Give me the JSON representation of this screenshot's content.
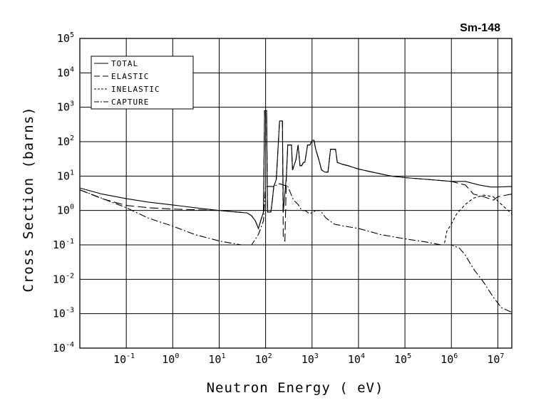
{
  "chart_data": {
    "type": "line",
    "title": "Sm-148",
    "xlabel": "Neutron Energy ( eV)",
    "ylabel": "Cross Section (barns)",
    "x_scale": "log",
    "y_scale": "log",
    "xlim": [
      0.01,
      20000000
    ],
    "ylim": [
      0.0001,
      100000
    ],
    "grid": true,
    "legend_position": "top-left",
    "x_ticks": [
      {
        "base": "10",
        "exp": "-1",
        "value": 0.1
      },
      {
        "base": "10",
        "exp": "0",
        "value": 1
      },
      {
        "base": "10",
        "exp": "1",
        "value": 10
      },
      {
        "base": "10",
        "exp": "2",
        "value": 100
      },
      {
        "base": "10",
        "exp": "3",
        "value": 1000
      },
      {
        "base": "10",
        "exp": "4",
        "value": 10000
      },
      {
        "base": "10",
        "exp": "5",
        "value": 100000
      },
      {
        "base": "10",
        "exp": "6",
        "value": 1000000
      },
      {
        "base": "10",
        "exp": "7",
        "value": 10000000
      }
    ],
    "y_ticks": [
      {
        "base": "10",
        "exp": "-4",
        "value": 0.0001
      },
      {
        "base": "10",
        "exp": "-3",
        "value": 0.001
      },
      {
        "base": "10",
        "exp": "-2",
        "value": 0.01
      },
      {
        "base": "10",
        "exp": "-1",
        "value": 0.1
      },
      {
        "base": "10",
        "exp": "0",
        "value": 1
      },
      {
        "base": "10",
        "exp": "1",
        "value": 10
      },
      {
        "base": "10",
        "exp": "2",
        "value": 100
      },
      {
        "base": "10",
        "exp": "3",
        "value": 1000
      },
      {
        "base": "10",
        "exp": "4",
        "value": 10000
      },
      {
        "base": "10",
        "exp": "5",
        "value": 100000
      }
    ],
    "series": [
      {
        "name": "TOTAL",
        "style": "solid",
        "points": [
          [
            0.01,
            4.5
          ],
          [
            0.03,
            3.0
          ],
          [
            0.1,
            2.2
          ],
          [
            0.3,
            1.75
          ],
          [
            1,
            1.45
          ],
          [
            3,
            1.2
          ],
          [
            10,
            1.0
          ],
          [
            20,
            0.92
          ],
          [
            40,
            0.85
          ],
          [
            50,
            0.7
          ],
          [
            60,
            0.5
          ],
          [
            70,
            0.3
          ],
          [
            80,
            0.55
          ],
          [
            90,
            0.9
          ],
          [
            95,
            800
          ],
          [
            105,
            800
          ],
          [
            110,
            0.9
          ],
          [
            130,
            0.9
          ],
          [
            140,
            2.0
          ],
          [
            150,
            5.0
          ],
          [
            170,
            8.0
          ],
          [
            200,
            400
          ],
          [
            230,
            400
          ],
          [
            240,
            0.9
          ],
          [
            280,
            10
          ],
          [
            300,
            80
          ],
          [
            360,
            80
          ],
          [
            380,
            15
          ],
          [
            450,
            30
          ],
          [
            500,
            80
          ],
          [
            550,
            20
          ],
          [
            600,
            20
          ],
          [
            650,
            25
          ],
          [
            700,
            25
          ],
          [
            800,
            80
          ],
          [
            900,
            80
          ],
          [
            1000,
            110
          ],
          [
            1100,
            110
          ],
          [
            1200,
            60
          ],
          [
            1400,
            30
          ],
          [
            1600,
            15
          ],
          [
            1900,
            13
          ],
          [
            2200,
            13
          ],
          [
            2500,
            60
          ],
          [
            3200,
            60
          ],
          [
            3500,
            25
          ],
          [
            4500,
            22
          ],
          [
            6000,
            20
          ],
          [
            10000,
            16
          ],
          [
            20000,
            13
          ],
          [
            50000,
            10
          ],
          [
            100000,
            9
          ],
          [
            300000,
            8
          ],
          [
            1000000,
            7
          ],
          [
            2000000,
            7
          ],
          [
            4000000,
            5.5
          ],
          [
            7000000,
            4.8
          ],
          [
            10000000,
            4.8
          ],
          [
            20000000,
            5.0
          ]
        ]
      },
      {
        "name": "ELASTIC",
        "style": "long-dash",
        "points": [
          [
            0.01,
            4.0
          ],
          [
            0.03,
            2.2
          ],
          [
            0.1,
            1.4
          ],
          [
            0.3,
            1.2
          ],
          [
            1,
            1.1
          ],
          [
            3,
            1.05
          ],
          [
            10,
            1.0
          ],
          [
            20,
            0.92
          ],
          [
            40,
            0.85
          ],
          [
            50,
            0.7
          ],
          [
            60,
            0.5
          ],
          [
            70,
            0.3
          ],
          [
            80,
            0.55
          ],
          [
            90,
            0.9
          ],
          [
            95,
            800
          ],
          [
            105,
            800
          ],
          [
            110,
            0.9
          ],
          [
            130,
            0.9
          ],
          [
            140,
            2.0
          ],
          [
            150,
            5.0
          ],
          [
            170,
            8.0
          ],
          [
            200,
            400
          ],
          [
            230,
            400
          ],
          [
            240,
            0.15
          ],
          [
            260,
            0.13
          ],
          [
            280,
            10
          ],
          [
            300,
            80
          ],
          [
            360,
            80
          ],
          [
            380,
            15
          ],
          [
            450,
            30
          ],
          [
            500,
            80
          ],
          [
            550,
            20
          ],
          [
            600,
            20
          ],
          [
            650,
            25
          ],
          [
            700,
            25
          ],
          [
            800,
            80
          ],
          [
            900,
            80
          ],
          [
            1000,
            110
          ],
          [
            1100,
            110
          ],
          [
            1200,
            60
          ],
          [
            1400,
            30
          ],
          [
            1600,
            15
          ],
          [
            1900,
            13
          ],
          [
            2200,
            13
          ],
          [
            2500,
            60
          ],
          [
            3200,
            60
          ],
          [
            3500,
            25
          ],
          [
            4500,
            22
          ],
          [
            6000,
            20
          ],
          [
            10000,
            16
          ],
          [
            20000,
            13
          ],
          [
            50000,
            10
          ],
          [
            100000,
            9
          ],
          [
            300000,
            8
          ],
          [
            1000000,
            7
          ],
          [
            2000000,
            5.5
          ],
          [
            3000000,
            3.0
          ],
          [
            5000000,
            2.5
          ],
          [
            8000000,
            2.0
          ],
          [
            10000000,
            2.5
          ],
          [
            20000000,
            3.0
          ]
        ]
      },
      {
        "name": "INELASTIC",
        "style": "short-dash",
        "points": [
          [
            600000,
            0.1
          ],
          [
            700000,
            0.1
          ],
          [
            800000,
            0.25
          ],
          [
            1000000,
            0.4
          ],
          [
            1300000,
            0.8
          ],
          [
            2000000,
            1.5
          ],
          [
            3000000,
            2.3
          ],
          [
            5000000,
            2.8
          ],
          [
            8000000,
            2.5
          ],
          [
            12000000,
            1.5
          ],
          [
            20000000,
            0.8
          ]
        ]
      },
      {
        "name": "CAPTURE",
        "style": "dash-dot",
        "points": [
          [
            0.01,
            4.0
          ],
          [
            0.1,
            1.2
          ],
          [
            0.3,
            0.6
          ],
          [
            1,
            0.35
          ],
          [
            3,
            0.2
          ],
          [
            10,
            0.13
          ],
          [
            30,
            0.1
          ],
          [
            50,
            0.1
          ],
          [
            70,
            0.2
          ],
          [
            90,
            0.5
          ],
          [
            100,
            5.0
          ],
          [
            150,
            5.0
          ],
          [
            200,
            6.0
          ],
          [
            300,
            5.0
          ],
          [
            400,
            2.0
          ],
          [
            500,
            1.5
          ],
          [
            600,
            1.0
          ],
          [
            700,
            1.0
          ],
          [
            900,
            0.8
          ],
          [
            1200,
            1.0
          ],
          [
            1500,
            1.0
          ],
          [
            2000,
            0.6
          ],
          [
            3000,
            0.4
          ],
          [
            5000,
            0.35
          ],
          [
            10000,
            0.3
          ],
          [
            30000,
            0.2
          ],
          [
            100000,
            0.15
          ],
          [
            300000,
            0.12
          ],
          [
            600000,
            0.1
          ],
          [
            1000000,
            0.1
          ],
          [
            1500000,
            0.08
          ],
          [
            2000000,
            0.05
          ],
          [
            3000000,
            0.02
          ],
          [
            5000000,
            0.008
          ],
          [
            8000000,
            0.003
          ],
          [
            12000000,
            0.0015
          ],
          [
            20000000,
            0.0011
          ]
        ]
      }
    ]
  }
}
